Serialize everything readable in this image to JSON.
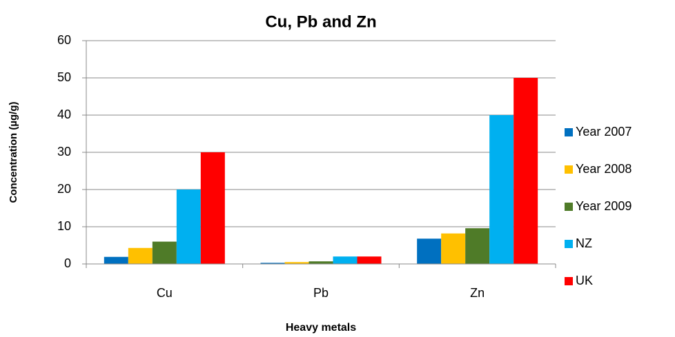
{
  "chart_data": {
    "type": "bar",
    "title": "Cu, Pb and Zn",
    "x_label": "Heavy metals",
    "y_label": "Concentration (µg/g)",
    "categories": [
      "Cu",
      "Pb",
      "Zn"
    ],
    "series": [
      {
        "name": "Year 2007",
        "color": "#0070c0",
        "values": [
          1.9,
          0.3,
          6.8
        ]
      },
      {
        "name": "Year 2008",
        "color": "#ffc000",
        "values": [
          4.3,
          0.5,
          8.2
        ]
      },
      {
        "name": "Year 2009",
        "color": "#4f7b28",
        "values": [
          6,
          0.7,
          9.6
        ]
      },
      {
        "name": "NZ",
        "color": "#00b0f0",
        "values": [
          20,
          2,
          40
        ]
      },
      {
        "name": "UK",
        "color": "#ff0000",
        "values": [
          30,
          2,
          50
        ]
      }
    ],
    "ylim": [
      0,
      60
    ],
    "yticks": [
      0,
      10,
      20,
      30,
      40,
      50,
      60
    ],
    "grid": true,
    "legend": "right"
  }
}
